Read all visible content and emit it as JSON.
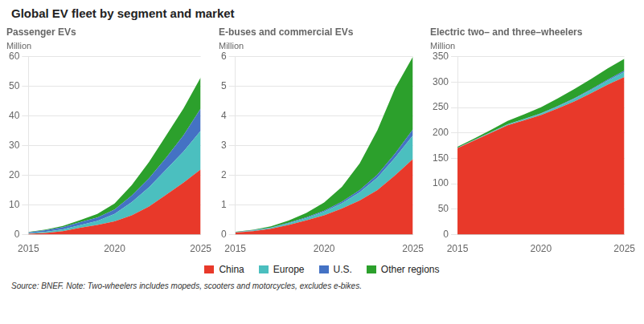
{
  "title": "Global EV fleet by segment and market",
  "annotations": [
    "Source: BNEF.  Note: Two-wheelers includes mopeds, scooters and motorcycles, excludes e-bikes."
  ],
  "legend": "bottom",
  "chart_data": [
    {
      "type": "area",
      "title": "Passenger EVs",
      "ylabel": "Million",
      "stacked": true,
      "grid": true,
      "x": [
        2015,
        2016,
        2017,
        2018,
        2019,
        2020,
        2021,
        2022,
        2023,
        2024,
        2025
      ],
      "xlim": [
        2015,
        2025
      ],
      "xticks": [
        2015,
        2020,
        2025
      ],
      "ylim": [
        0,
        60
      ],
      "yticks": [
        0,
        10,
        20,
        30,
        40,
        50,
        60
      ],
      "series": [
        {
          "name": "China",
          "color": "#e8392a",
          "values": [
            0.3,
            0.6,
            1.2,
            2.3,
            3.3,
            4.5,
            6.5,
            9.5,
            13.5,
            17.5,
            22.0
          ]
        },
        {
          "name": "Europe",
          "color": "#4bbfbf",
          "values": [
            0.2,
            0.4,
            0.6,
            0.9,
            1.3,
            2.5,
            4.5,
            6.5,
            8.5,
            10.5,
            13.0
          ]
        },
        {
          "name": "U.S.",
          "color": "#4472c4",
          "values": [
            0.3,
            0.5,
            0.7,
            1.0,
            1.2,
            1.5,
            2.2,
            3.0,
            4.0,
            5.5,
            7.5
          ]
        },
        {
          "name": "Other regions",
          "color": "#2ca02c",
          "values": [
            0.1,
            0.2,
            0.4,
            0.7,
            1.2,
            2.0,
            3.5,
            5.5,
            7.5,
            9.0,
            10.5
          ]
        }
      ]
    },
    {
      "type": "area",
      "title": "E-buses and commercial EVs",
      "ylabel": "Million",
      "stacked": true,
      "grid": true,
      "x": [
        2015,
        2016,
        2017,
        2018,
        2019,
        2020,
        2021,
        2022,
        2023,
        2024,
        2025
      ],
      "xlim": [
        2015,
        2025
      ],
      "xticks": [
        2015,
        2020,
        2025
      ],
      "ylim": [
        0,
        6
      ],
      "yticks": [
        0,
        1,
        2,
        3,
        4,
        5,
        6
      ],
      "series": [
        {
          "name": "China",
          "color": "#e8392a",
          "values": [
            0.07,
            0.12,
            0.2,
            0.33,
            0.48,
            0.65,
            0.88,
            1.15,
            1.5,
            2.0,
            2.55
          ]
        },
        {
          "name": "Europe",
          "color": "#4bbfbf",
          "values": [
            0.01,
            0.02,
            0.03,
            0.05,
            0.08,
            0.12,
            0.18,
            0.28,
            0.42,
            0.6,
            0.8
          ]
        },
        {
          "name": "U.S.",
          "color": "#4472c4",
          "values": [
            0.005,
            0.008,
            0.012,
            0.018,
            0.025,
            0.035,
            0.05,
            0.07,
            0.1,
            0.14,
            0.2
          ]
        },
        {
          "name": "Other regions",
          "color": "#2ca02c",
          "values": [
            0.01,
            0.02,
            0.04,
            0.08,
            0.15,
            0.28,
            0.5,
            0.9,
            1.5,
            2.2,
            2.45
          ]
        }
      ]
    },
    {
      "type": "area",
      "title": "Electric two– and three–wheelers",
      "ylabel": "Million",
      "stacked": true,
      "grid": true,
      "x": [
        2015,
        2016,
        2017,
        2018,
        2019,
        2020,
        2021,
        2022,
        2023,
        2024,
        2025
      ],
      "xlim": [
        2015,
        2025
      ],
      "xticks": [
        2015,
        2020,
        2025
      ],
      "ylim": [
        0,
        350
      ],
      "yticks": [
        0,
        50,
        100,
        150,
        200,
        250,
        300,
        350
      ],
      "series": [
        {
          "name": "China",
          "color": "#e8392a",
          "values": [
            170,
            185,
            200,
            215,
            225,
            235,
            248,
            262,
            278,
            295,
            310
          ]
        },
        {
          "name": "Europe",
          "color": "#4bbfbf",
          "values": [
            0.5,
            0.7,
            1.0,
            1.5,
            2.0,
            2.8,
            3.8,
            5.0,
            6.5,
            8.0,
            10.0
          ]
        },
        {
          "name": "U.S.",
          "color": "#4472c4",
          "values": [
            0.2,
            0.3,
            0.4,
            0.5,
            0.6,
            0.8,
            1.0,
            1.3,
            1.6,
            2.0,
            2.5
          ]
        },
        {
          "name": "Other regions",
          "color": "#2ca02c",
          "values": [
            2.0,
            3.0,
            4.5,
            6.5,
            9.0,
            12.0,
            15.0,
            18.0,
            20.0,
            22.0,
            23.5
          ]
        }
      ]
    }
  ]
}
